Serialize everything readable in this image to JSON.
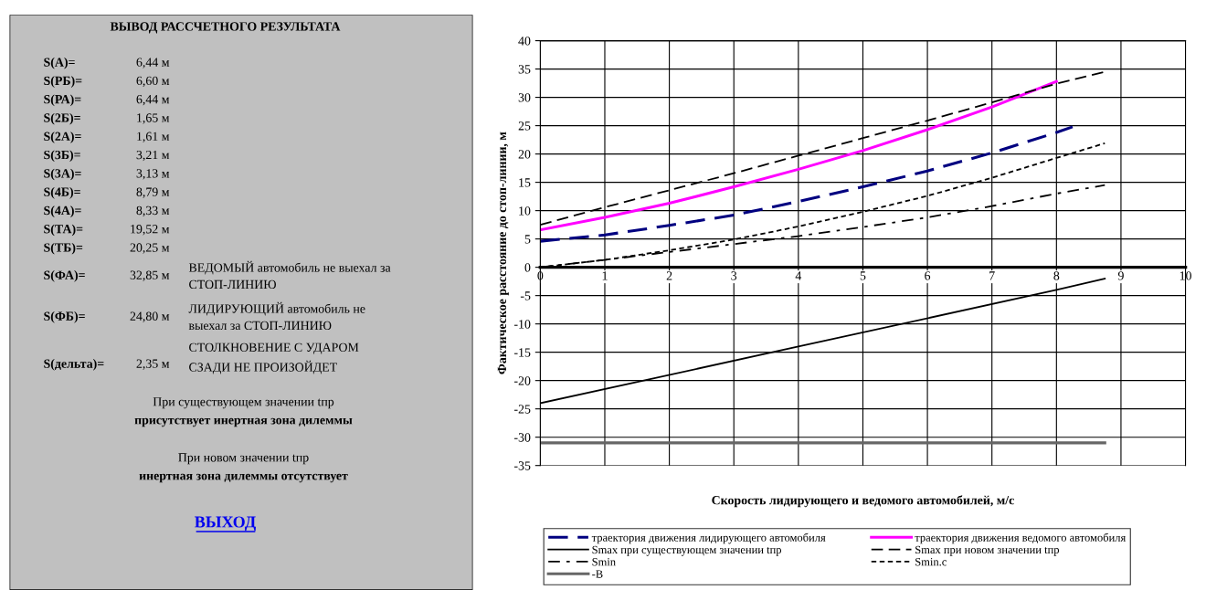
{
  "chart_data": [
    {
      "type": "other",
      "title": "ВЫВОД РАССЧЕТНОГО РЕЗУЛЬТАТА",
      "annotations": [
        "S(А)=",
        "6,44 м",
        "S(РБ)=",
        "6,60 м",
        "S(РА)=",
        "6,44 м",
        "S(2Б)=",
        "1,65 м",
        "S(2А)=",
        "1,61 м",
        "S(3Б)=",
        "3,21 м",
        "S(3А)=",
        "3,13 м",
        "S(4Б)=",
        "8,79 м",
        "S(4А)=",
        "8,33 м",
        "S(ТА)=",
        "19,52 м",
        "S(ТБ)=",
        "20,25 м",
        "S(ФА)=",
        "32,85 м",
        "S(ФБ)=",
        "24,80 м",
        "S(дельта)=",
        "2,35 м",
        "ВЕДОМЫЙ автомобиль не выехал за\nСТОП-ЛИНИЮ",
        "ЛИДИРУЮЩИЙ автомобиль не\nвыехал за СТОП-ЛИНИЮ",
        "СТОЛКНОВЕНИЕ С УДАРОМ\nСЗАДИ НЕ ПРОИЗОЙДЕТ",
        "При существующем значении tпр",
        "присутствует инертная зона дилеммы",
        "При новом значении tпр",
        "инертная зона дилеммы отсутствует",
        "ВЫХОД"
      ]
    },
    {
      "type": "line",
      "xlabel": "Скорость лидирующего и ведомого автомобилей, м/с",
      "ylabel": "Фактическое расстояние до стоп-линии, м",
      "xlim": [
        0,
        10
      ],
      "xticks": [
        0,
        1,
        2,
        3,
        4,
        5,
        6,
        7,
        8,
        9,
        10
      ],
      "ylim": [
        -35,
        40
      ],
      "yticks": [
        -35,
        -30,
        -25,
        -20,
        -15,
        -10,
        -5,
        0,
        5,
        10,
        15,
        20,
        25,
        30,
        35,
        40
      ],
      "grid": true,
      "legend": "bottom",
      "marker": "none",
      "series": [
        {
          "name": "траектория движения лидирующего автомобиля",
          "color": "#000080",
          "line_style": "dashed",
          "x": [
            0,
            1,
            2,
            3,
            4,
            5,
            6,
            7,
            8,
            8.25
          ],
          "values": [
            4.6,
            5.7,
            7.4,
            9.2,
            11.6,
            14.2,
            17,
            20.2,
            23.8,
            24.8
          ]
        },
        {
          "name": "траектория движения ведомого автомобиля",
          "color": "#ff00ff",
          "line_style": "solid",
          "x": [
            0,
            1,
            2,
            3,
            4,
            5,
            6,
            7,
            8
          ],
          "values": [
            6.6,
            8.8,
            11.3,
            14.2,
            17.3,
            20.6,
            24.3,
            28.3,
            32.8
          ]
        },
        {
          "name": "Smax при существующем значении tпр",
          "color": "#000000",
          "line_style": "solid",
          "x": [
            0,
            4,
            8,
            8.75
          ],
          "values": [
            -24,
            -14,
            -4,
            -2
          ]
        },
        {
          "name": "Smax при новом значении tпр",
          "color": "#000000",
          "line_style": "dashed",
          "x": [
            0,
            1,
            2,
            3,
            4,
            5,
            6,
            7,
            8,
            8.75
          ],
          "values": [
            7.5,
            10.6,
            13.6,
            16.6,
            19.7,
            22.8,
            25.9,
            29.1,
            32.4,
            34.5
          ]
        },
        {
          "name": "Smin",
          "color": "#000000",
          "line_style": "dashdot",
          "x": [
            0,
            1,
            2,
            3,
            4,
            5,
            6,
            7,
            8,
            8.75
          ],
          "values": [
            0,
            1.3,
            2.7,
            4.1,
            5.5,
            7.1,
            8.8,
            10.8,
            13,
            14.5
          ]
        },
        {
          "name": "Smin.c",
          "color": "#000000",
          "line_style": "dotted",
          "x": [
            0,
            1,
            2,
            3,
            4,
            5,
            6,
            7,
            8,
            8.75
          ],
          "values": [
            0,
            1.3,
            3,
            4.9,
            7.2,
            9.8,
            12.6,
            15.8,
            19.3,
            21.9
          ]
        },
        {
          "name": "-B",
          "color": "#666666",
          "line_style": "solid",
          "x": [
            0,
            8.75
          ],
          "values": [
            -31,
            -31
          ]
        }
      ]
    }
  ]
}
